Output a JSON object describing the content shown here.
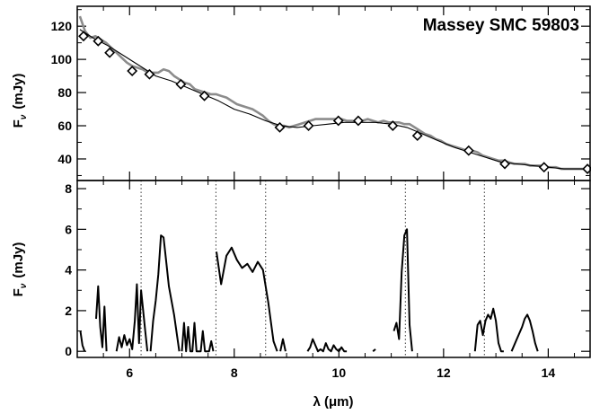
{
  "chart_data": [
    {
      "panel": "top",
      "type": "line",
      "title": "Massey SMC 59803",
      "ylabel": "F",
      "ylabel_sub": "ν",
      "ylabel_unit": "(mJy)",
      "xlim": [
        5.0,
        14.8
      ],
      "ylim": [
        27,
        132
      ],
      "yticks": [
        40,
        60,
        80,
        100,
        120
      ],
      "yminor": [
        30,
        50,
        70,
        90,
        110,
        130
      ],
      "colors": {
        "observed": "#8c8c8c",
        "model": "#000000",
        "markers": "#000000"
      },
      "series": [
        {
          "role": "observed",
          "x": [
            5.05,
            5.15,
            5.25,
            5.35,
            5.45,
            5.55,
            5.65,
            5.75,
            5.85,
            5.95,
            6.05,
            6.15,
            6.25,
            6.35,
            6.45,
            6.55,
            6.65,
            6.75,
            6.85,
            6.95,
            7.05,
            7.15,
            7.25,
            7.35,
            7.45,
            7.55,
            7.65,
            7.75,
            7.85,
            7.95,
            8.05,
            8.15,
            8.25,
            8.35,
            8.45,
            8.55,
            8.65,
            8.75,
            8.85,
            8.95,
            9.05,
            9.15,
            9.25,
            9.35,
            9.45,
            9.55,
            9.65,
            9.75,
            9.85,
            9.95,
            10.05,
            10.15,
            10.25,
            10.35,
            10.45,
            10.55,
            10.65,
            10.75,
            10.85,
            10.95,
            11.05,
            11.15,
            11.25,
            11.35,
            11.45,
            11.55,
            11.65,
            11.75,
            11.85,
            11.95,
            12.05,
            12.15,
            12.25,
            12.35,
            12.45,
            12.55,
            12.65,
            12.75,
            12.85,
            12.95,
            13.05,
            13.15,
            13.25,
            13.35,
            13.45,
            13.55,
            13.65,
            13.75,
            13.85,
            13.95,
            14.05,
            14.15,
            14.25,
            14.35,
            14.45,
            14.55,
            14.65,
            14.75
          ],
          "y": [
            126,
            117,
            113,
            114,
            112,
            110,
            107,
            104,
            101,
            98,
            96,
            95,
            94,
            92,
            92,
            92,
            94,
            93,
            90,
            88,
            86,
            85,
            82,
            81,
            80,
            79,
            79,
            78,
            77,
            75,
            73,
            72,
            71,
            70,
            68,
            66,
            63,
            61,
            60,
            60,
            59,
            60,
            61,
            62,
            63,
            64,
            64,
            64,
            64,
            64,
            64,
            63,
            63,
            62,
            63,
            64,
            63,
            62,
            63,
            62,
            62,
            62,
            61,
            61,
            59,
            57,
            55,
            54,
            52,
            51,
            49,
            48,
            47,
            46,
            45,
            45,
            44,
            42,
            41,
            40,
            39,
            39,
            38,
            37,
            37,
            37,
            36,
            36,
            36,
            35,
            35,
            35,
            34,
            34,
            34,
            34,
            34,
            34
          ]
        },
        {
          "role": "model",
          "x": [
            5.05,
            5.3,
            5.6,
            5.9,
            6.2,
            6.5,
            6.8,
            7.1,
            7.4,
            7.7,
            8.0,
            8.3,
            8.6,
            8.9,
            9.2,
            9.5,
            9.8,
            10.1,
            10.4,
            10.7,
            11.0,
            11.3,
            11.6,
            11.9,
            12.2,
            12.5,
            12.8,
            13.1,
            13.4,
            13.7,
            14.0,
            14.3,
            14.6,
            14.75
          ],
          "y": [
            118,
            113,
            108,
            102,
            96,
            90,
            87,
            83,
            79,
            75,
            70,
            67,
            63,
            60,
            59,
            60,
            61,
            62,
            62,
            62,
            61,
            59,
            55,
            51,
            47,
            44,
            41,
            38,
            37,
            36,
            35,
            34,
            34,
            34
          ]
        },
        {
          "role": "markers",
          "x": [
            5.12,
            5.4,
            5.62,
            6.05,
            6.38,
            6.98,
            7.43,
            8.87,
            9.42,
            9.99,
            10.37,
            11.03,
            11.5,
            12.48,
            13.17,
            13.92,
            14.75
          ],
          "y": [
            114,
            111,
            104,
            93,
            91,
            85,
            78,
            59,
            60,
            63,
            63,
            60,
            54,
            45,
            37,
            35,
            34
          ]
        }
      ]
    },
    {
      "panel": "bottom",
      "type": "line",
      "xlabel": "λ (μm)",
      "ylabel": "F",
      "ylabel_sub": "ν",
      "ylabel_unit": "(mJy)",
      "xlim": [
        5.0,
        14.8
      ],
      "ylim": [
        -0.3,
        8.4
      ],
      "xticks": [
        6,
        8,
        10,
        12,
        14
      ],
      "xminor": [
        5.5,
        6.5,
        7,
        7.5,
        8.5,
        9,
        9.5,
        10.5,
        11,
        11.5,
        12.5,
        13,
        13.5,
        14.5
      ],
      "yticks": [
        0,
        2,
        4,
        6,
        8
      ],
      "yminor": [
        1,
        3,
        5,
        7
      ],
      "vlines": [
        6.22,
        7.65,
        8.6,
        11.27,
        12.78
      ],
      "series": [
        {
          "x": [
            5.06,
            5.1,
            5.14
          ],
          "y": [
            1.0,
            0.3,
            0.0
          ]
        },
        {
          "x": [
            5.36,
            5.4,
            5.44,
            5.48,
            5.52,
            5.56
          ],
          "y": [
            1.6,
            3.2,
            1.2,
            0.2,
            2.2,
            0.0
          ]
        },
        {
          "x": [
            5.75,
            5.8,
            5.85,
            5.9,
            5.95,
            6.0,
            6.05,
            6.1,
            6.14,
            6.18,
            6.22,
            6.26,
            6.3,
            6.34
          ],
          "y": [
            0.0,
            0.7,
            0.2,
            0.8,
            0.3,
            0.6,
            0.1,
            1.5,
            3.3,
            0.4,
            3.0,
            2.0,
            1.0,
            0.0
          ]
        },
        {
          "x": [
            6.4,
            6.45,
            6.5,
            6.55,
            6.6,
            6.65,
            6.7,
            6.75,
            6.8,
            6.85,
            6.9,
            6.95
          ],
          "y": [
            0.0,
            1.5,
            2.5,
            3.8,
            5.7,
            5.6,
            4.4,
            3.2,
            2.5,
            1.8,
            0.9,
            0.0
          ]
        },
        {
          "x": [
            7.0,
            7.04,
            7.08,
            7.12,
            7.16,
            7.2,
            7.24,
            7.28,
            7.32,
            7.36,
            7.4,
            7.44,
            7.48,
            7.52,
            7.56,
            7.6
          ],
          "y": [
            0.0,
            1.4,
            0.0,
            1.2,
            0.0,
            0.0,
            1.4,
            0.0,
            0.0,
            0.0,
            1.0,
            0.0,
            0.0,
            0.0,
            0.5,
            0.0
          ]
        },
        {
          "x": [
            7.66,
            7.75,
            7.85,
            7.95,
            8.05,
            8.15,
            8.25,
            8.35,
            8.45,
            8.55,
            8.65,
            8.75,
            8.82
          ],
          "y": [
            4.9,
            3.3,
            4.7,
            5.1,
            4.5,
            4.1,
            4.3,
            3.9,
            4.4,
            4.0,
            2.4,
            0.5,
            0.0
          ]
        },
        {
          "x": [
            8.88,
            8.93,
            8.98
          ],
          "y": [
            0.0,
            0.6,
            0.0
          ]
        },
        {
          "x": [
            9.4,
            9.45,
            9.5,
            9.55,
            9.6,
            9.65,
            9.7,
            9.75,
            9.8,
            9.85,
            9.9,
            9.95,
            10.0,
            10.05,
            10.1,
            10.15
          ],
          "y": [
            0.0,
            0.2,
            0.6,
            0.3,
            0.0,
            0.1,
            0.0,
            0.4,
            0.1,
            0.0,
            0.3,
            0.1,
            0.0,
            0.2,
            0.0,
            0.0
          ]
        },
        {
          "x": [
            10.65,
            10.7
          ],
          "y": [
            0.0,
            0.1
          ]
        },
        {
          "x": [
            11.05,
            11.1,
            11.15,
            11.2,
            11.25,
            11.3,
            11.35,
            11.4
          ],
          "y": [
            1.0,
            1.4,
            0.6,
            3.9,
            5.7,
            6.0,
            1.3,
            0.0
          ]
        },
        {
          "x": [
            12.6,
            12.65,
            12.7,
            12.75,
            12.8,
            12.85,
            12.9,
            12.95,
            13.0,
            13.05,
            13.1,
            13.15
          ],
          "y": [
            0.0,
            1.3,
            1.5,
            0.8,
            1.5,
            1.8,
            1.6,
            2.1,
            1.5,
            0.4,
            0.0,
            0.0
          ]
        },
        {
          "x": [
            13.3,
            13.4,
            13.5,
            13.55,
            13.6,
            13.65,
            13.7,
            13.75,
            13.8
          ],
          "y": [
            0.0,
            0.6,
            1.2,
            1.6,
            1.8,
            1.5,
            1.0,
            0.4,
            0.0
          ]
        }
      ]
    }
  ]
}
